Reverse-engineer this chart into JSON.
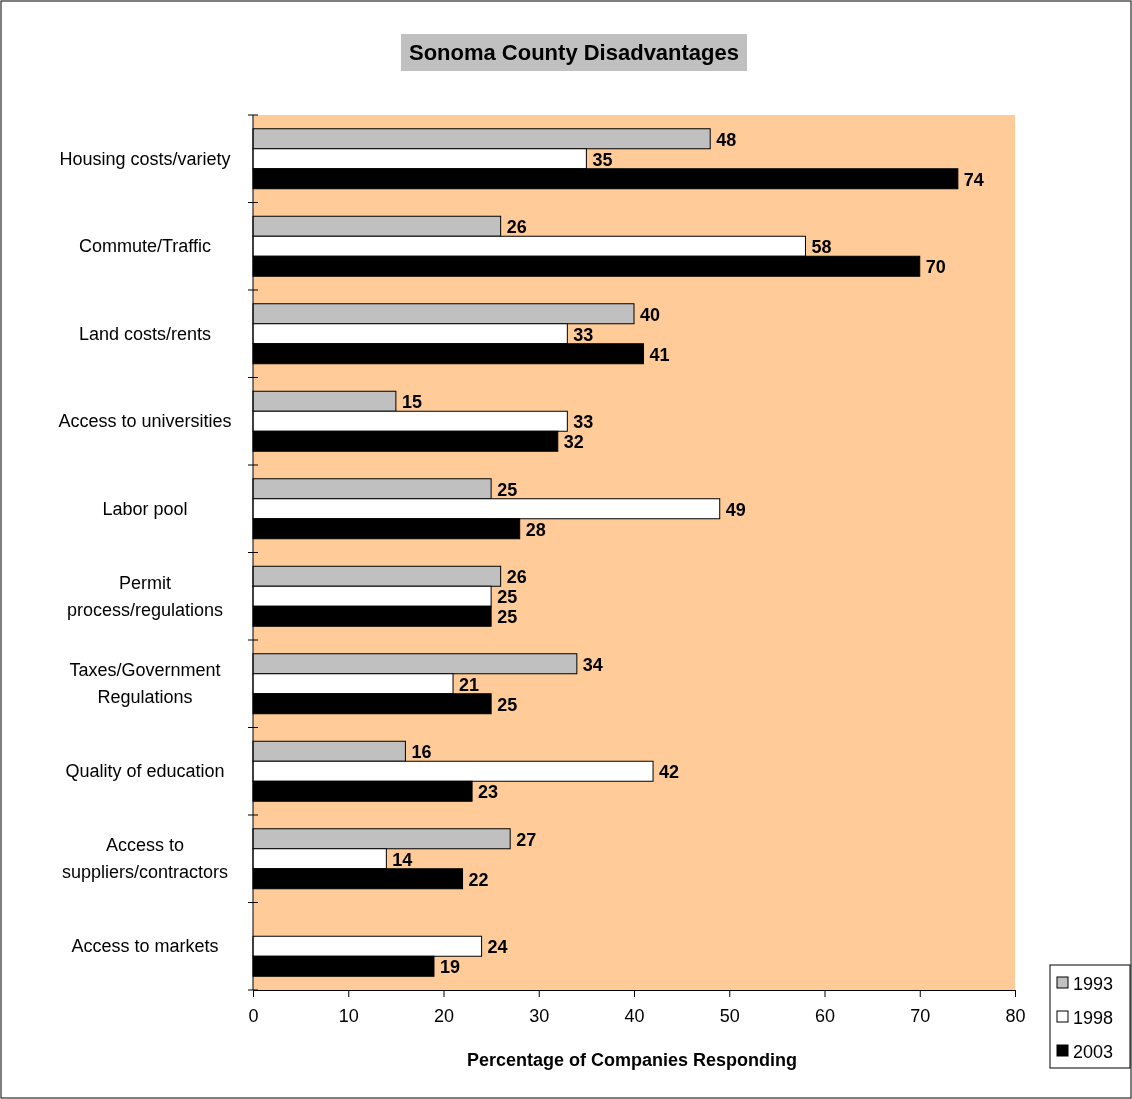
{
  "chart_data": {
    "type": "bar",
    "orientation": "horizontal",
    "title": "Sonoma County Disadvantages",
    "xlabel": "Percentage of Companies Responding",
    "categories": [
      "Housing costs/variety",
      "Commute/Traffic",
      "Land costs/rents",
      "Access to universities",
      "Labor pool",
      "Permit\nprocess/regulations",
      "Taxes/Government\nRegulations",
      "Quality of education",
      "Access to\nsuppliers/contractors",
      "Access to markets"
    ],
    "series": [
      {
        "name": "1993",
        "color": "#c0c0c0",
        "values": [
          48,
          26,
          40,
          15,
          25,
          26,
          34,
          16,
          27,
          null
        ]
      },
      {
        "name": "1998",
        "color": "#ffffff",
        "values": [
          35,
          58,
          33,
          33,
          49,
          25,
          21,
          42,
          14,
          24
        ]
      },
      {
        "name": "2003",
        "color": "#000000",
        "values": [
          74,
          70,
          41,
          32,
          28,
          25,
          25,
          23,
          22,
          19
        ]
      }
    ],
    "xlim": [
      0,
      80
    ],
    "xticks": [
      0,
      10,
      20,
      30,
      40,
      50,
      60,
      70,
      80
    ],
    "data_labels": true,
    "legend": "bottom right"
  }
}
